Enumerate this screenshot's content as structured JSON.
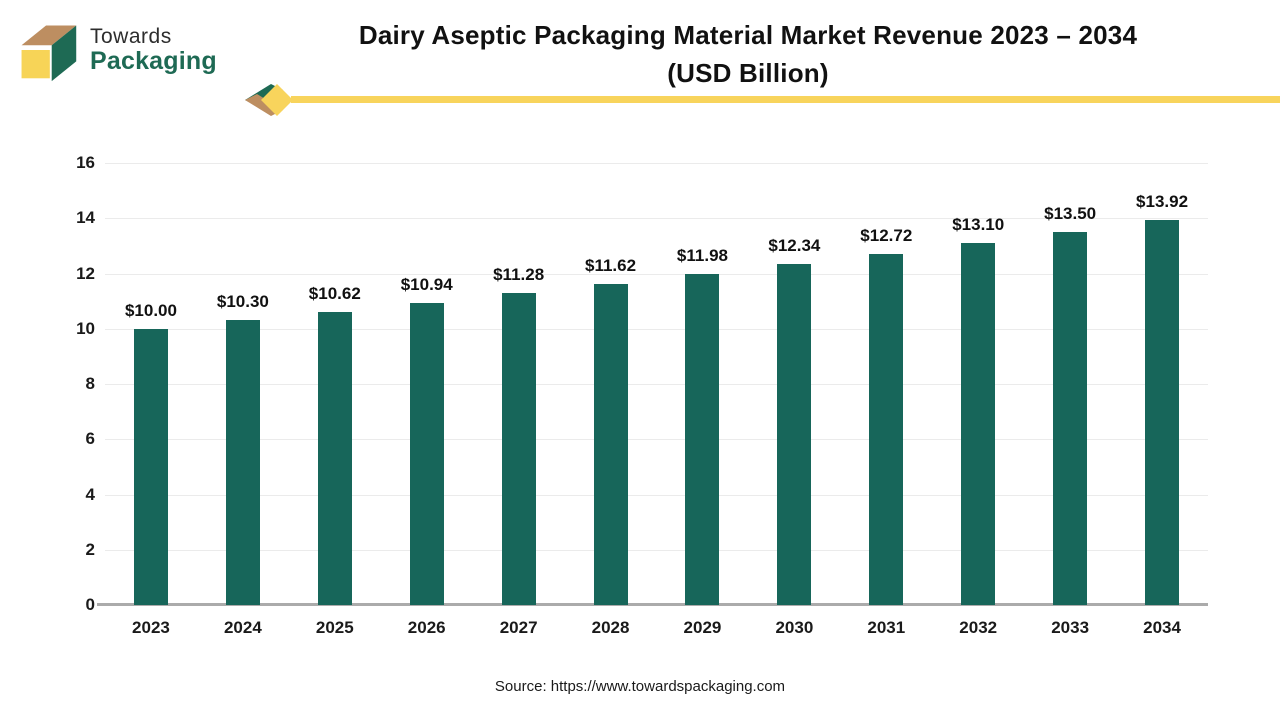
{
  "header": {
    "logo": {
      "line1": "Towards",
      "line2": "Packaging"
    },
    "title_line1": "Dairy Aseptic Packaging Material Market Revenue 2023 – 2034",
    "title_line2": "(USD Billion)"
  },
  "chart_data": {
    "type": "bar",
    "title": "Dairy Aseptic Packaging Material Market Revenue 2023 – 2034 (USD Billion)",
    "categories": [
      "2023",
      "2024",
      "2025",
      "2026",
      "2027",
      "2028",
      "2029",
      "2030",
      "2031",
      "2032",
      "2033",
      "2034"
    ],
    "values": [
      10.0,
      10.3,
      10.62,
      10.94,
      11.28,
      11.62,
      11.98,
      12.34,
      12.72,
      13.1,
      13.5,
      13.92
    ],
    "value_labels": [
      "$10.00",
      "$10.30",
      "$10.62",
      "$10.94",
      "$11.28",
      "$11.62",
      "$11.98",
      "$12.34",
      "$12.72",
      "$13.10",
      "$13.50",
      "$13.92"
    ],
    "xlabel": "",
    "ylabel": "",
    "ylim": [
      0,
      16
    ],
    "yticks": [
      0,
      2,
      4,
      6,
      8,
      10,
      12,
      14,
      16
    ],
    "grid": true,
    "legend": "none",
    "bar_color": "#17665A"
  },
  "footer": {
    "source": "Source: https://www.towardspackaging.com"
  },
  "colors": {
    "bar": "#17665A",
    "accent_yellow": "#F8D45C",
    "accent_tan": "#BD8E61",
    "accent_green": "#1E6A54",
    "grid": "#EBEBEB",
    "axis_line": "#ABABAB",
    "text": "#1A1A1A"
  }
}
